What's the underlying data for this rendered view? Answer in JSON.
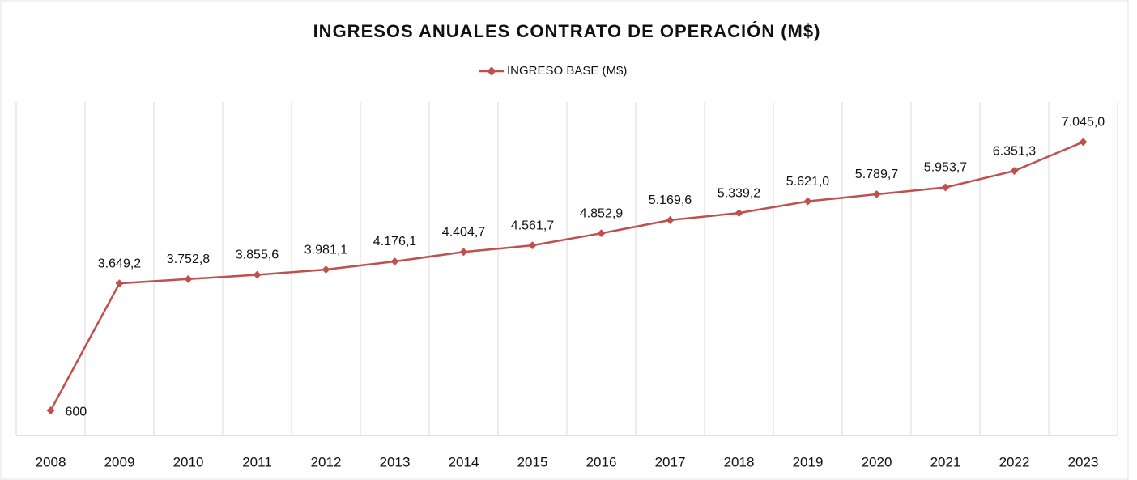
{
  "chart_data": {
    "type": "line",
    "title": "INGRESOS ANUALES CONTRATO DE OPERACIÓN (M$)",
    "categories": [
      "2008",
      "2009",
      "2010",
      "2011",
      "2012",
      "2013",
      "2014",
      "2015",
      "2016",
      "2017",
      "2018",
      "2019",
      "2020",
      "2021",
      "2022",
      "2023"
    ],
    "series": [
      {
        "name": "INGRESO BASE (M$)",
        "color": "#c0504d",
        "values": [
          600,
          3649.2,
          3752.8,
          3855.6,
          3981.1,
          4176.1,
          4404.7,
          4561.7,
          4852.9,
          5169.6,
          5339.2,
          5621.0,
          5789.7,
          5953.7,
          6351.3,
          7045.0
        ],
        "value_labels": [
          "600",
          "3.649,2",
          "3.752,8",
          "3.855,6",
          "3.981,1",
          "4.176,1",
          "4.404,7",
          "4.561,7",
          "4.852,9",
          "5.169,6",
          "5.339,2",
          "5.621,0",
          "5.789,7",
          "5.953,7",
          "6.351,3",
          "7.045,0"
        ]
      }
    ],
    "grid": true,
    "legend": "top"
  }
}
